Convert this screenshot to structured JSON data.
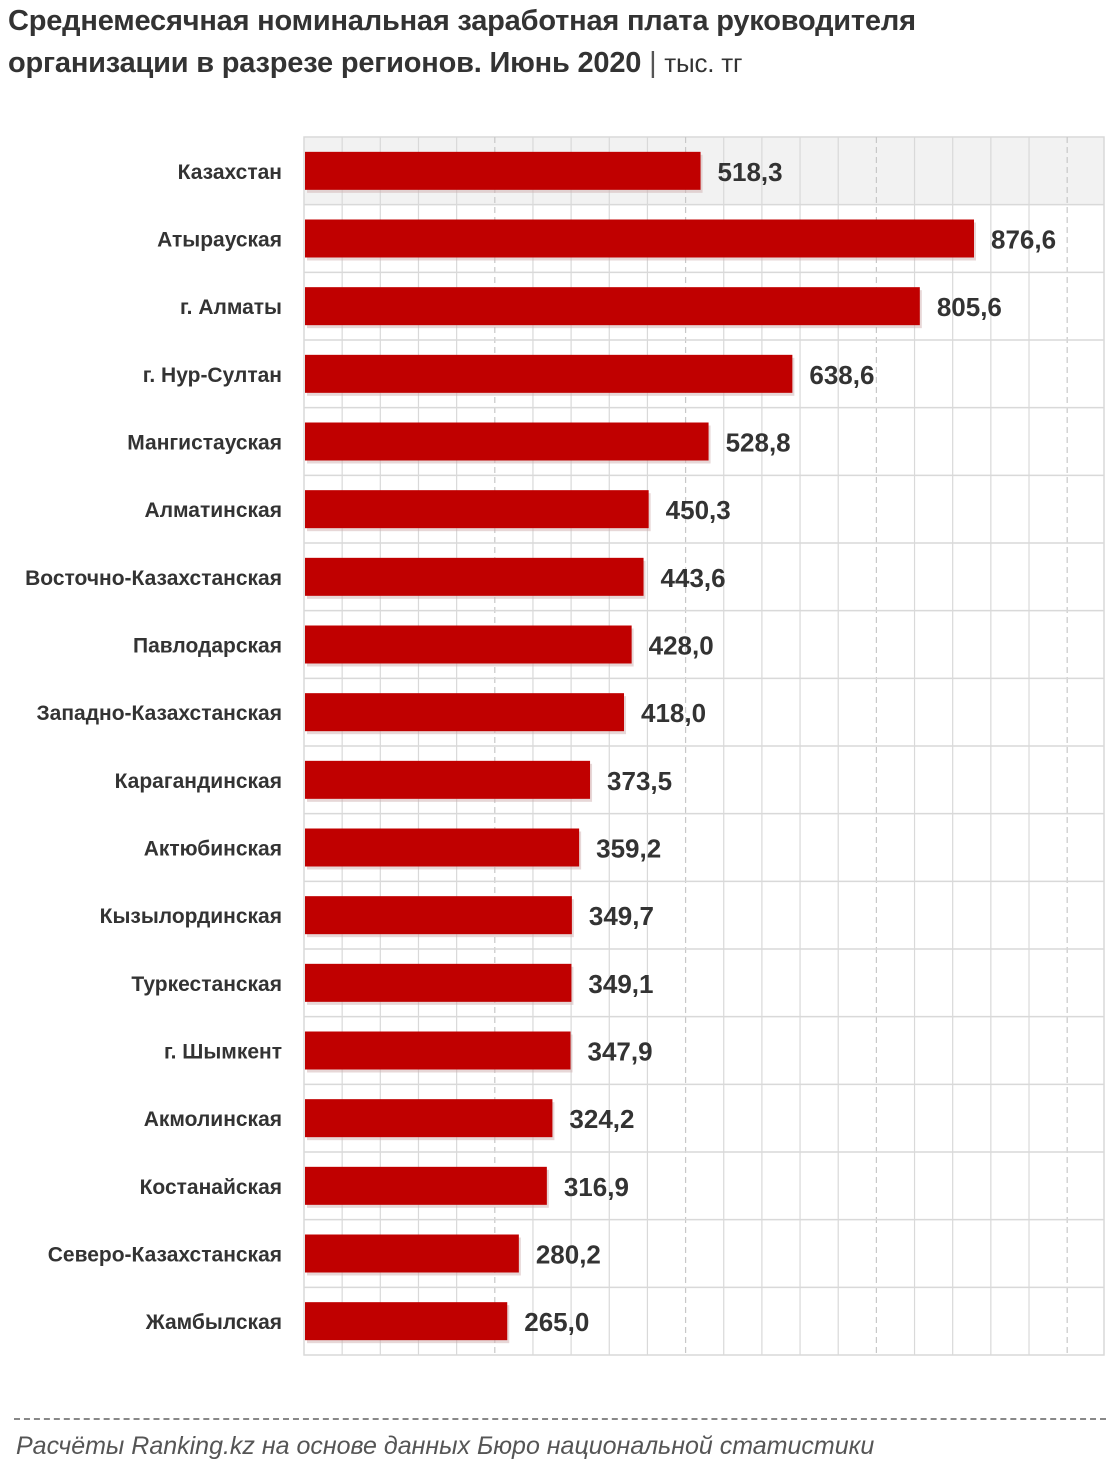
{
  "title": {
    "line1": "Среднемесячная номинальная заработная плата руководителя",
    "line2": "организации в разрезе регионов. Июнь 2020",
    "separator": "|",
    "unit": "тыс. тг"
  },
  "footer": {
    "source": "Расчёты Ranking.kz на основе данных Бюро национальной статистики"
  },
  "colors": {
    "bar": "#c00000",
    "highlight_row": "#f2f2f2",
    "grid": "#d9d9d9"
  },
  "chart_data": {
    "type": "bar",
    "orientation": "horizontal",
    "categories": [
      "Казахстан",
      "Атырауская",
      "г. Алматы",
      "г. Нур-Султан",
      "Мангистауская",
      "Алматинская",
      "Восточно-Казахстанская",
      "Павлодарская",
      "Западно-Казахстанская",
      "Карагандинская",
      "Актюбинская",
      "Кызылординская",
      "Туркестанская",
      "г. Шымкент",
      "Акмолинская",
      "Костанайская",
      "Северо-Казахстанская",
      "Жамбылская"
    ],
    "values": [
      518.3,
      876.6,
      805.6,
      638.6,
      528.8,
      450.3,
      443.6,
      428.0,
      418.0,
      373.5,
      359.2,
      349.7,
      349.1,
      347.9,
      324.2,
      316.9,
      280.2,
      265.0
    ],
    "value_labels": [
      "518,3",
      "876,6",
      "805,6",
      "638,6",
      "528,8",
      "450,3",
      "443,6",
      "428,0",
      "418,0",
      "373,5",
      "359,2",
      "349,7",
      "349,1",
      "347,9",
      "324,2",
      "316,9",
      "280,2",
      "265,0"
    ],
    "highlight_category": "Казахстан",
    "xlim": [
      0,
      1050
    ],
    "grid": true,
    "legend": "none"
  }
}
